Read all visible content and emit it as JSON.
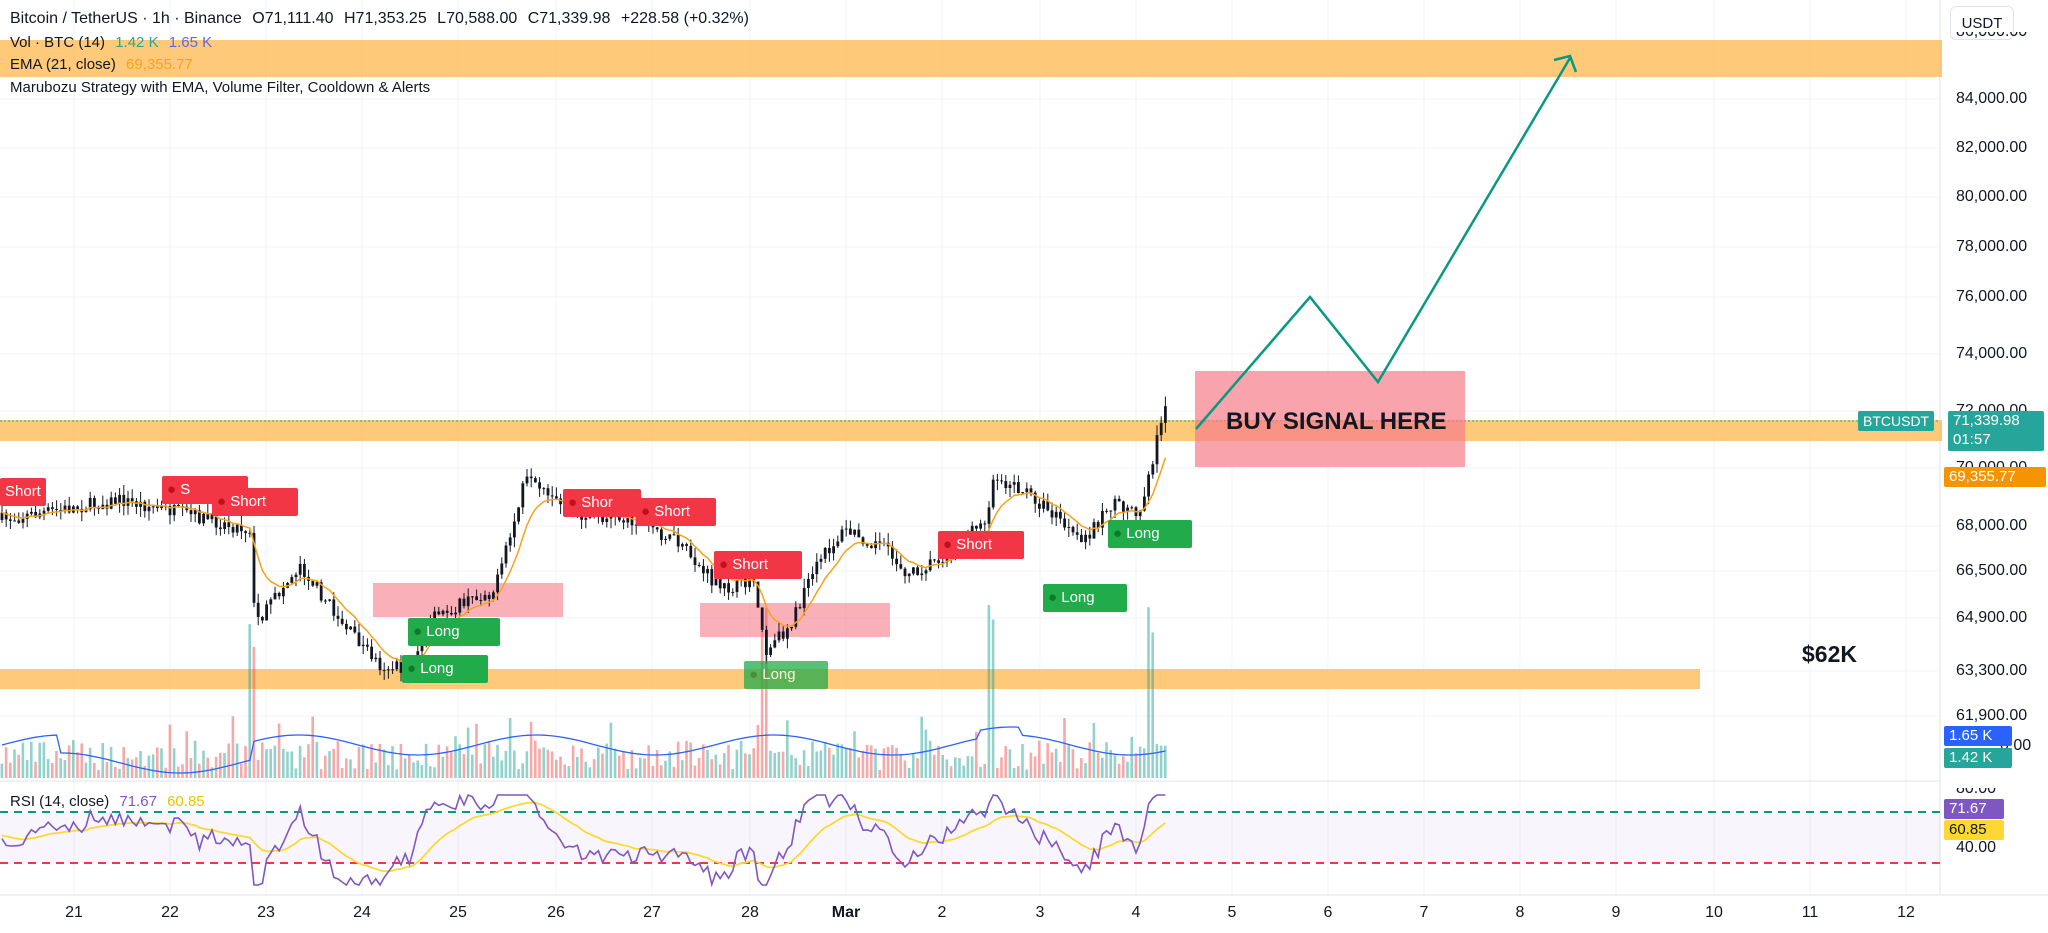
{
  "header": {
    "symbol": "Bitcoin / TetherUS · 1h · Binance",
    "open": "O71,111.40",
    "high": "H71,353.25",
    "low": "L70,588.00",
    "close": "C71,339.98",
    "change": "+228.58 (+0.32%)"
  },
  "indicators": {
    "vol_label": "Vol · BTC (14)",
    "vol_v1": "1.42 K",
    "vol_v2": "1.65 K",
    "ema_label": "EMA (21, close)",
    "ema_value": "69,355.77",
    "strategy_label": "Marubozu Strategy with EMA, Volume Filter, Cooldown & Alerts",
    "rsi_label": "RSI (14, close)",
    "rsi_value": "71.67",
    "rsi_ma": "60.85"
  },
  "currency_button": "USDT",
  "price_axis": [
    "84,000.00",
    "82,000.00",
    "80,000.00",
    "78,000.00",
    "76,000.00",
    "74,000.00",
    "72,000.00",
    "70,000.00",
    "68,000.00",
    "66,500.00",
    "64,900.00",
    "63,300.00",
    "61,900.00"
  ],
  "price_axis_top_partial": "86,000.00",
  "price_axis_vol_partial": "0.00",
  "rsi_axis": {
    "top": "80.00",
    "bottom": "40.00"
  },
  "date_axis": [
    "21",
    "22",
    "23",
    "24",
    "25",
    "26",
    "27",
    "28",
    "Mar",
    "2",
    "3",
    "4",
    "5",
    "6",
    "7",
    "8",
    "9",
    "10",
    "11",
    "12"
  ],
  "tags": {
    "symbol_tag": "BTCUSDT",
    "last_price": "71,339.98",
    "countdown": "01:57",
    "ema_tag": "69,355.77",
    "vol_tag1": "1.65 K",
    "vol_tag2": "1.42 K",
    "rsi_tag": "71.67",
    "rsi_ma_tag": "60.85"
  },
  "annotations": {
    "buy_signal": "BUY SIGNAL HERE",
    "price_62k": "$62K"
  },
  "signals": [
    {
      "type": "short",
      "label": "Short"
    },
    {
      "type": "short",
      "label": "S"
    },
    {
      "type": "short",
      "label": "Short"
    },
    {
      "type": "short",
      "label": "Shor"
    },
    {
      "type": "short",
      "label": "Short"
    },
    {
      "type": "short",
      "label": "Short"
    },
    {
      "type": "short",
      "label": "Short"
    },
    {
      "type": "long",
      "label": "Long"
    },
    {
      "type": "long",
      "label": "Long"
    },
    {
      "type": "long",
      "label": "Long"
    },
    {
      "type": "long",
      "label": "Long"
    },
    {
      "type": "long",
      "label": "Long"
    }
  ],
  "colors": {
    "up": "#26a69a",
    "down": "#ef5350",
    "ema": "#f7a21b",
    "zone": "#ffb74d",
    "buy_box": "#f77c8a",
    "arrow": "#089981",
    "rsi": "#7e57c2",
    "rsi_ma": "#fdd835",
    "vol_ma": "#2962ff"
  }
}
